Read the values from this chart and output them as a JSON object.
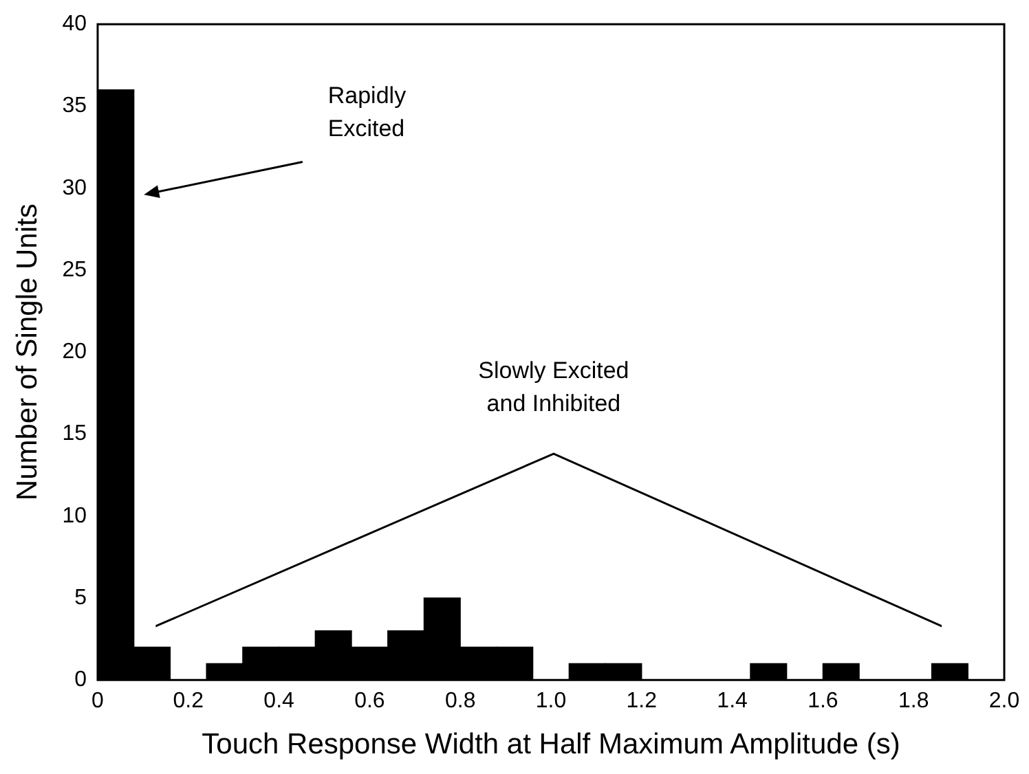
{
  "chart_data": {
    "type": "histogram",
    "xlabel": "Touch Response Width at Half Maximum Amplitude (s)",
    "ylabel": "Number of Single Units",
    "bins": [
      0,
      0.08,
      0.16,
      0.24,
      0.32,
      0.4,
      0.48,
      0.56,
      0.64,
      0.72,
      0.8,
      0.88,
      0.96,
      1.04,
      1.12,
      1.2,
      1.28,
      1.36,
      1.44,
      1.52,
      1.6,
      1.68,
      1.76,
      1.84,
      1.92,
      2.0
    ],
    "values": [
      36,
      2,
      0,
      1,
      2,
      2,
      3,
      2,
      3,
      5,
      2,
      2,
      0,
      1,
      1,
      0,
      0,
      0,
      1,
      0,
      1,
      0,
      0,
      1,
      0
    ],
    "color": "#000000",
    "xlim": [
      0,
      2.0
    ],
    "xticks": [
      0,
      0.2,
      0.4,
      0.6,
      0.8,
      {
        "value": 1,
        "label": "1.0"
      },
      1.2,
      1.4,
      1.6,
      1.8,
      {
        "value": 2,
        "label": "2.0"
      }
    ],
    "ylim": [
      0,
      40
    ],
    "yticks": [
      0,
      5,
      10,
      15,
      20,
      25,
      30,
      35,
      40
    ],
    "grid": false,
    "legend": false,
    "annotations": [
      "Rapidly\nExcited",
      "Slowly Excited\nand Inhibited"
    ]
  }
}
